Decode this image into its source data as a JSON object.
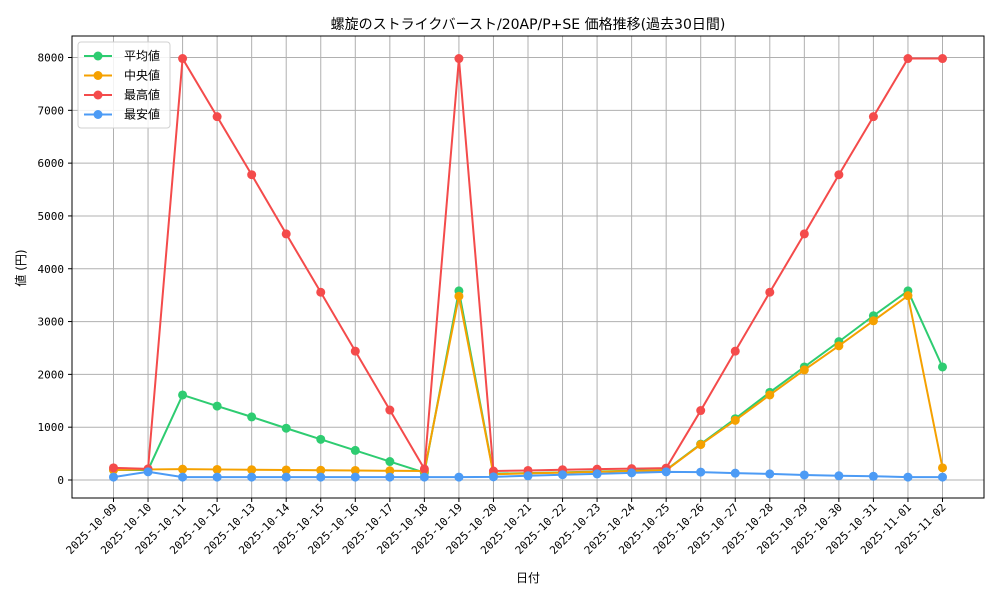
{
  "chart_data": {
    "type": "line",
    "title": "螺旋のストライクバースト/20AP/P+SE 価格推移(過去30日間)",
    "xlabel": "日付",
    "ylabel": "値 (円)",
    "ylim": [
      -350,
      8400
    ],
    "yticks": [
      0,
      1000,
      2000,
      3000,
      4000,
      5000,
      6000,
      7000,
      8000
    ],
    "grid": true,
    "legend_position": "upper left",
    "categories": [
      "2025-10-09",
      "2025-10-10",
      "2025-10-11",
      "2025-10-12",
      "2025-10-13",
      "2025-10-14",
      "2025-10-15",
      "2025-10-16",
      "2025-10-17",
      "2025-10-18",
      "2025-10-19",
      "2025-10-20",
      "2025-10-21",
      "2025-10-22",
      "2025-10-23",
      "2025-10-24",
      "2025-10-25",
      "2025-10-26",
      "2025-10-27",
      "2025-10-28",
      "2025-10-29",
      "2025-10-30",
      "2025-10-31",
      "2025-11-01",
      "2025-11-02"
    ],
    "series": [
      {
        "name": "平均値",
        "color": "#2ecc71",
        "values": [
          190,
          190,
          1610,
          1400,
          1195,
          980,
          770,
          560,
          350,
          140,
          3580,
          120,
          130,
          145,
          160,
          175,
          190,
          680,
          1160,
          1660,
          2140,
          2620,
          3110,
          3580,
          2140
        ]
      },
      {
        "name": "中央値",
        "color": "#f5a100",
        "values": [
          190,
          200,
          205,
          200,
          195,
          190,
          185,
          180,
          175,
          170,
          3480,
          110,
          125,
          140,
          155,
          170,
          185,
          670,
          1130,
          1610,
          2085,
          2540,
          3015,
          3490,
          230
        ]
      },
      {
        "name": "最高値",
        "color": "#f44b4b",
        "values": [
          230,
          210,
          7980,
          6880,
          5780,
          4660,
          3555,
          2440,
          1325,
          210,
          7980,
          170,
          180,
          195,
          205,
          215,
          225,
          1315,
          2440,
          3555,
          4660,
          5780,
          6880,
          7980,
          7980
        ]
      },
      {
        "name": "最安値",
        "color": "#4c9bf5",
        "values": [
          55,
          155,
          55,
          55,
          55,
          55,
          55,
          55,
          55,
          55,
          55,
          60,
          80,
          100,
          115,
          135,
          155,
          150,
          130,
          115,
          95,
          80,
          70,
          55,
          55
        ]
      }
    ]
  }
}
